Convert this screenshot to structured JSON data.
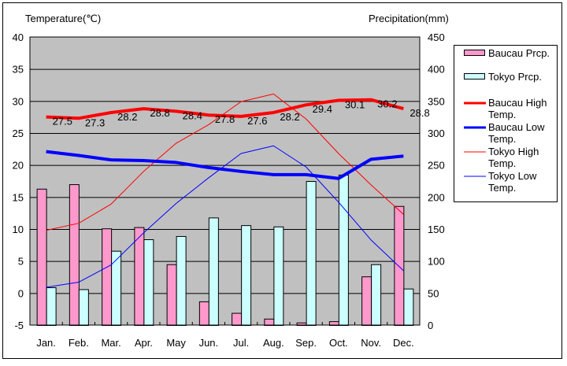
{
  "chart_data": {
    "type": "bar+line",
    "title": "",
    "ylabel": "Temperature(℃)",
    "y2label": "Precipitation(mm)",
    "ylim": [
      -5,
      40
    ],
    "y2lim": [
      0,
      450
    ],
    "yticks": [
      "-5",
      "0",
      "5",
      "10",
      "15",
      "20",
      "25",
      "30",
      "35",
      "40"
    ],
    "y2ticks": [
      "0",
      "50",
      "100",
      "150",
      "200",
      "250",
      "300",
      "350",
      "400",
      "450"
    ],
    "grid": true,
    "legend_position": "right",
    "categories": [
      "Jan.",
      "Feb.",
      "Mar.",
      "Apr.",
      "May",
      "Jun.",
      "Jul.",
      "Aug.",
      "Sep.",
      "Oct.",
      "Nov.",
      "Dec."
    ],
    "bar_series": [
      {
        "name": "Baucau Prcp.",
        "color": "#ff99cc",
        "axis": "right",
        "values": [
          213,
          220,
          151,
          153,
          95,
          37,
          19,
          10,
          4,
          6,
          76,
          186
        ]
      },
      {
        "name": "Tokyo Prcp.",
        "color": "#ccffff",
        "axis": "right",
        "values": [
          59,
          56,
          116,
          134,
          139,
          168,
          156,
          154,
          225,
          235,
          95,
          57
        ]
      }
    ],
    "line_series": [
      {
        "name": "Baucau High Temp.",
        "color": "#ff0000",
        "width": "thick",
        "labels": true,
        "values": [
          27.5,
          27.3,
          28.2,
          28.8,
          28.4,
          27.8,
          27.6,
          28.2,
          29.4,
          30.1,
          30.2,
          28.8
        ]
      },
      {
        "name": "Baucau Low Temp.",
        "color": "#0000ff",
        "width": "thick",
        "labels": false,
        "values": [
          22.1,
          21.5,
          20.8,
          20.7,
          20.4,
          19.6,
          19.0,
          18.5,
          18.5,
          17.9,
          20.9,
          21.4
        ]
      },
      {
        "name": "Tokyo High Temp.",
        "color": "#ff0000",
        "width": "thin",
        "labels": false,
        "values": [
          9.8,
          10.9,
          13.9,
          19.0,
          23.4,
          26.3,
          29.9,
          31.1,
          27.2,
          21.8,
          16.9,
          12.3
        ]
      },
      {
        "name": "Tokyo Low Temp.",
        "color": "#0000ff",
        "width": "thin",
        "labels": false,
        "values": [
          0.9,
          1.7,
          4.4,
          9.4,
          14.0,
          18.0,
          21.8,
          23.0,
          19.7,
          14.2,
          8.3,
          3.5
        ]
      }
    ],
    "legend": [
      {
        "label": "Baucau Prcp.",
        "kind": "bar"
      },
      {
        "label": "Tokyo Prcp.",
        "kind": "bar"
      },
      {
        "label": "Baucau High Temp.",
        "kind": "line"
      },
      {
        "label": "Baucau Low Temp.",
        "kind": "line"
      },
      {
        "label": "Tokyo High Temp.",
        "kind": "line"
      },
      {
        "label": "Tokyo Low Temp.",
        "kind": "line"
      }
    ]
  }
}
